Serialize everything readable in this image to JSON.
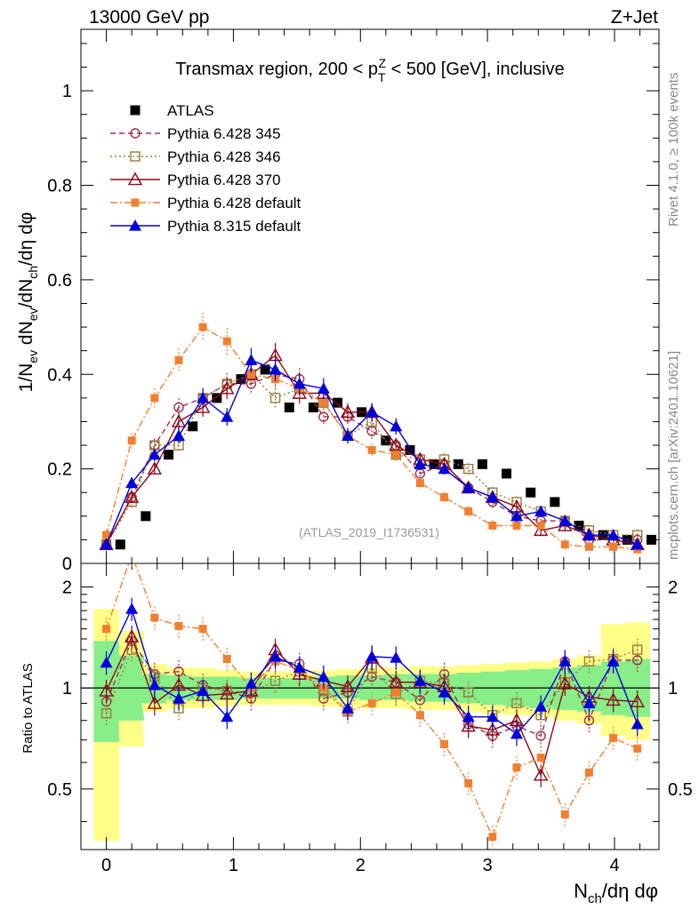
{
  "header": {
    "left": "13000 GeV pp",
    "right": "Z+Jet"
  },
  "side_labels": {
    "rivet": "Rivet 4.1.0, ≥ 100k events",
    "site": "mcplots.cern.ch [arXiv:2401.10621]"
  },
  "colors": {
    "ATLAS": "#000000",
    "Pythia 6.428 345": "#a0304a",
    "Pythia 6.428 346": "#9a7a3a",
    "Pythia 6.428 370": "#8b0a1a",
    "Pythia 6.428 default": "#f08030",
    "Pythia 8.315 default": "#0000dd",
    "band_outer": "#ffff88",
    "band_inner": "#88ee88"
  },
  "chart_data": [
    {
      "type": "line",
      "title": "Transmax region, 200 < p_T^Z < 500 [GeV], inclusive",
      "title_parts": {
        "pre": "Transmax region, 200 < p",
        "sup": "Z",
        "sub": "T",
        "post": " < 500 [GeV], inclusive"
      },
      "ylabel": "1/N_ev dN_ev/dN_ch/dη dφ",
      "ylabel_parts": [
        "1/N",
        "ev",
        " dN",
        "ev",
        "/dN",
        "ch",
        "/dη dφ"
      ],
      "xlabel": "",
      "watermark": "(ATLAS_2019_I1736531)",
      "xlim": [
        -0.2,
        4.35
      ],
      "ylim": [
        0,
        1.13
      ],
      "yticks": [
        0,
        0.2,
        0.4,
        0.6,
        0.8,
        1
      ],
      "ytick_labels": [
        "0",
        "0.2",
        "0.4",
        "0.6",
        "0.8",
        "1"
      ],
      "legend_position": "top-left",
      "x": [
        0.0,
        0.2,
        0.38,
        0.57,
        0.76,
        0.95,
        1.14,
        1.33,
        1.52,
        1.71,
        1.9,
        2.09,
        2.28,
        2.47,
        2.66,
        2.85,
        3.04,
        3.23,
        3.42,
        3.61,
        3.8,
        3.99,
        4.18
      ],
      "series": [
        {
          "name": "ATLAS",
          "marker": "square",
          "dash": "none",
          "values": [
            0.04,
            0.1,
            0.23,
            0.29,
            0.35,
            0.39,
            0.41,
            0.33,
            0.33,
            0.34,
            0.32,
            0.26,
            0.24,
            0.21,
            0.21,
            0.21,
            0.19,
            0.15,
            0.13,
            0.08,
            0.06,
            0.05,
            0.05
          ]
        },
        {
          "name": "Pythia 6.428 345",
          "marker": "circle-open",
          "dash": "6,4",
          "values": [
            0.04,
            0.14,
            0.25,
            0.33,
            0.35,
            0.38,
            0.38,
            0.4,
            0.39,
            0.31,
            0.31,
            0.28,
            0.25,
            0.19,
            0.21,
            0.16,
            0.13,
            0.1,
            0.09,
            0.09,
            0.05,
            0.05,
            0.05
          ]
        },
        {
          "name": "Pythia 6.428 346",
          "marker": "square-open",
          "dash": "2,3",
          "values": [
            0.04,
            0.13,
            0.25,
            0.25,
            0.35,
            0.38,
            0.4,
            0.35,
            0.37,
            0.34,
            0.27,
            0.3,
            0.23,
            0.22,
            0.22,
            0.2,
            0.15,
            0.13,
            0.11,
            0.09,
            0.07,
            0.06,
            0.06
          ]
        },
        {
          "name": "Pythia 6.428 370",
          "marker": "triangle-open",
          "dash": "none",
          "values": [
            0.04,
            0.14,
            0.2,
            0.3,
            0.33,
            0.37,
            0.4,
            0.44,
            0.36,
            0.36,
            0.32,
            0.32,
            0.25,
            0.22,
            0.21,
            0.16,
            0.14,
            0.12,
            0.07,
            0.08,
            0.06,
            0.05,
            0.04
          ]
        },
        {
          "name": "Pythia 6.428 default",
          "marker": "square-small",
          "dash": "8,3,2,3",
          "values": [
            0.06,
            0.26,
            0.35,
            0.43,
            0.5,
            0.47,
            0.4,
            0.39,
            0.37,
            0.34,
            0.27,
            0.24,
            0.23,
            0.17,
            0.14,
            0.11,
            0.08,
            0.08,
            0.08,
            0.04,
            0.035,
            0.035,
            0.03
          ]
        },
        {
          "name": "Pythia 8.315 default",
          "marker": "triangle",
          "dash": "none",
          "values": [
            0.04,
            0.17,
            0.23,
            0.27,
            0.35,
            0.31,
            0.43,
            0.41,
            0.38,
            0.37,
            0.27,
            0.32,
            0.29,
            0.21,
            0.2,
            0.16,
            0.14,
            0.1,
            0.11,
            0.09,
            0.06,
            0.06,
            0.04
          ]
        }
      ]
    },
    {
      "type": "line",
      "title": "",
      "xlabel": "N_ch/dη dφ",
      "xlabel_parts": [
        "N",
        "ch",
        "/dη dφ"
      ],
      "ylabel": "Ratio to ATLAS",
      "xlim": [
        -0.2,
        4.35
      ],
      "ylim": [
        0.33,
        2.35
      ],
      "yscale": "log",
      "yticks": [
        0.5,
        1,
        2
      ],
      "ytick_labels": [
        "0.5",
        "1",
        "2"
      ],
      "xticks": [
        0,
        1,
        2,
        3,
        4
      ],
      "xtick_labels": [
        "0",
        "1",
        "2",
        "3",
        "4"
      ],
      "reference_line": 1,
      "bands": {
        "outer_lo": [
          0.35,
          0.67,
          0.85,
          0.87,
          0.87,
          0.88,
          0.89,
          0.89,
          0.89,
          0.88,
          0.88,
          0.87,
          0.87,
          0.86,
          0.86,
          0.85,
          0.84,
          0.83,
          0.82,
          0.8,
          0.78,
          0.72,
          0.7
        ],
        "outer_hi": [
          1.72,
          1.48,
          1.18,
          1.15,
          1.15,
          1.13,
          1.12,
          1.12,
          1.12,
          1.13,
          1.14,
          1.15,
          1.15,
          1.16,
          1.16,
          1.17,
          1.18,
          1.19,
          1.2,
          1.22,
          1.25,
          1.55,
          1.57
        ],
        "inner_lo": [
          0.69,
          0.8,
          0.9,
          0.92,
          0.92,
          0.92,
          0.93,
          0.93,
          0.93,
          0.93,
          0.93,
          0.92,
          0.92,
          0.91,
          0.91,
          0.9,
          0.89,
          0.88,
          0.87,
          0.86,
          0.85,
          0.83,
          0.82
        ],
        "inner_hi": [
          1.38,
          1.25,
          1.1,
          1.09,
          1.08,
          1.08,
          1.07,
          1.07,
          1.07,
          1.08,
          1.09,
          1.09,
          1.1,
          1.1,
          1.1,
          1.11,
          1.12,
          1.13,
          1.14,
          1.15,
          1.17,
          1.2,
          1.22
        ]
      },
      "series": [
        {
          "name": "Pythia 6.428 345",
          "values": [
            0.91,
            1.38,
            1.1,
            1.12,
            1.02,
            0.98,
            0.93,
            1.21,
            1.18,
            0.93,
            0.97,
            1.08,
            1.04,
            0.92,
            1.1,
            0.78,
            0.72,
            0.77,
            0.72,
            1.2,
            0.8,
            1.21,
            1.21
          ]
        },
        {
          "name": "Pythia 6.428 346",
          "values": [
            0.84,
            1.3,
            1.08,
            0.87,
            1.0,
            0.98,
            0.97,
            1.05,
            1.12,
            0.98,
            0.85,
            1.15,
            0.96,
            1.05,
            1.03,
            0.97,
            0.83,
            0.9,
            0.83,
            1.04,
            1.2,
            1.22,
            1.3
          ]
        },
        {
          "name": "Pythia 6.428 370",
          "values": [
            0.98,
            1.42,
            0.9,
            1.02,
            0.95,
            0.96,
            0.98,
            1.3,
            1.1,
            1.05,
            1.01,
            1.23,
            1.04,
            1.04,
            1.01,
            0.77,
            0.75,
            0.8,
            0.55,
            1.03,
            0.94,
            0.92,
            0.91
          ]
        },
        {
          "name": "Pythia 6.428 default",
          "values": [
            1.5,
            2.5,
            1.62,
            1.53,
            1.5,
            1.22,
            1.0,
            1.2,
            1.13,
            1.0,
            0.85,
            0.9,
            0.97,
            0.83,
            0.68,
            0.52,
            0.36,
            0.58,
            0.62,
            0.42,
            0.56,
            0.71,
            0.66
          ]
        },
        {
          "name": "Pythia 8.315 default",
          "values": [
            1.19,
            1.72,
            1.02,
            0.93,
            0.98,
            0.82,
            1.03,
            1.24,
            1.15,
            1.08,
            0.87,
            1.24,
            1.23,
            1.05,
            0.97,
            0.82,
            0.82,
            0.73,
            0.88,
            1.2,
            0.9,
            1.2,
            0.78
          ]
        }
      ]
    }
  ]
}
